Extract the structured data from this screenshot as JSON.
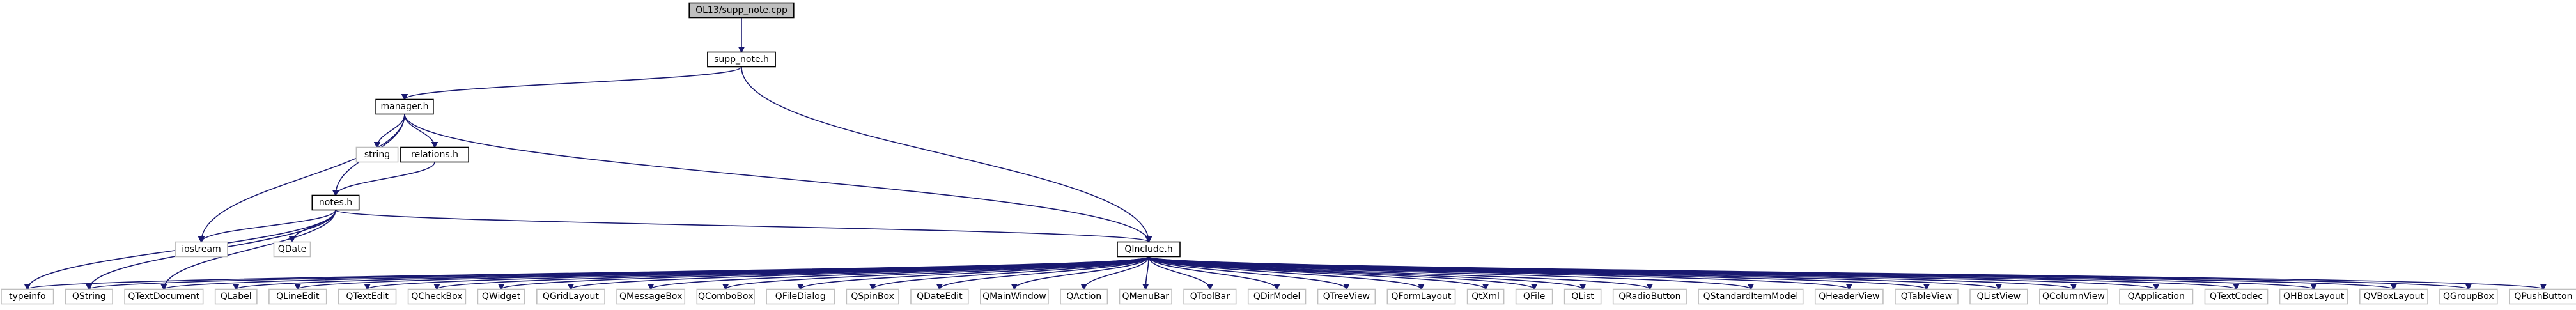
{
  "graph": {
    "root": {
      "label": "OL13/supp_note.cpp",
      "style": "root"
    },
    "nodes": [
      {
        "id": "supp_note",
        "label": "supp_note.h",
        "style": "doc"
      },
      {
        "id": "manager",
        "label": "manager.h",
        "style": "doc"
      },
      {
        "id": "string",
        "label": "string",
        "style": "external"
      },
      {
        "id": "relations",
        "label": "relations.h",
        "style": "doc"
      },
      {
        "id": "notes",
        "label": "notes.h",
        "style": "doc"
      },
      {
        "id": "iostream",
        "label": "iostream",
        "style": "external"
      },
      {
        "id": "QDate",
        "label": "QDate",
        "style": "external"
      },
      {
        "id": "QInclude",
        "label": "QInclude.h",
        "style": "doc"
      }
    ],
    "bottom_row": [
      {
        "label": "typeinfo",
        "style": "external"
      },
      {
        "label": "QString",
        "style": "external"
      },
      {
        "label": "QTextDocument",
        "style": "external"
      },
      {
        "label": "QLabel",
        "style": "external"
      },
      {
        "label": "QLineEdit",
        "style": "external"
      },
      {
        "label": "QTextEdit",
        "style": "external"
      },
      {
        "label": "QCheckBox",
        "style": "external"
      },
      {
        "label": "QWidget",
        "style": "external"
      },
      {
        "label": "QGridLayout",
        "style": "external"
      },
      {
        "label": "QMessageBox",
        "style": "external"
      },
      {
        "label": "QComboBox",
        "style": "external"
      },
      {
        "label": "QFileDialog",
        "style": "external"
      },
      {
        "label": "QSpinBox",
        "style": "external"
      },
      {
        "label": "QDateEdit",
        "style": "external"
      },
      {
        "label": "QMainWindow",
        "style": "external"
      },
      {
        "label": "QAction",
        "style": "external"
      },
      {
        "label": "QMenuBar",
        "style": "external"
      },
      {
        "label": "QToolBar",
        "style": "external"
      },
      {
        "label": "QDirModel",
        "style": "external"
      },
      {
        "label": "QTreeView",
        "style": "external"
      },
      {
        "label": "QFormLayout",
        "style": "external"
      },
      {
        "label": "QtXml",
        "style": "external"
      },
      {
        "label": "QFile",
        "style": "external"
      },
      {
        "label": "QList",
        "style": "external"
      },
      {
        "label": "QRadioButton",
        "style": "external"
      },
      {
        "label": "QStandardItemModel",
        "style": "external"
      },
      {
        "label": "QHeaderView",
        "style": "external"
      },
      {
        "label": "QTableView",
        "style": "external"
      },
      {
        "label": "QListView",
        "style": "external"
      },
      {
        "label": "QColumnView",
        "style": "external"
      },
      {
        "label": "QApplication",
        "style": "external"
      },
      {
        "label": "QTextCodec",
        "style": "external"
      },
      {
        "label": "QHBoxLayout",
        "style": "external"
      },
      {
        "label": "QVBoxLayout",
        "style": "external"
      },
      {
        "label": "QGroupBox",
        "style": "external"
      },
      {
        "label": "QPushButton",
        "style": "external"
      }
    ],
    "edges": [
      [
        "root",
        "supp_note"
      ],
      [
        "supp_note",
        "manager"
      ],
      [
        "supp_note",
        "QInclude"
      ],
      [
        "manager",
        "string"
      ],
      [
        "manager",
        "relations"
      ],
      [
        "manager",
        "notes"
      ],
      [
        "manager",
        "iostream"
      ],
      [
        "manager",
        "QInclude"
      ],
      [
        "relations",
        "notes"
      ],
      [
        "notes",
        "iostream"
      ],
      [
        "notes",
        "QDate"
      ],
      [
        "notes",
        "QInclude"
      ],
      [
        "notes",
        "typeinfo"
      ],
      [
        "notes",
        "QString"
      ],
      [
        "notes",
        "QTextDocument"
      ],
      [
        "QInclude",
        "*bottom_row"
      ]
    ],
    "colors": {
      "edge": "#191970",
      "root_fill": "#bfbfbf",
      "root_stroke": "#000000",
      "doc_fill": "#ffffff",
      "doc_stroke": "#000000",
      "external_fill": "#ffffff",
      "external_stroke": "#bfbfbf",
      "text": "#000000"
    }
  }
}
